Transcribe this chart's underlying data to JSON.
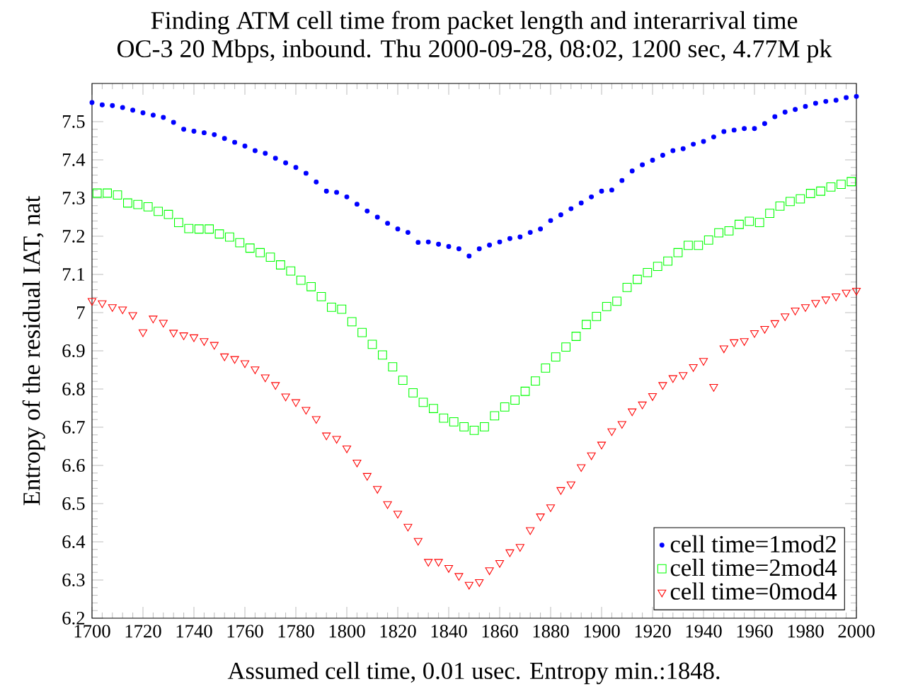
{
  "chart_data": {
    "type": "scatter",
    "title": "Finding ATM cell time from packet length and interarrival time",
    "subtitle": "OC-3 20 Mbps, inbound. Thu 2000-09-28, 08:02, 1200 sec, 4.77M pk",
    "xlabel": "Assumed cell time, 0.01 usec. Entropy min.:1848.",
    "ylabel": "Entropy of the residual IAT, nat",
    "xlim": [
      1700,
      2000
    ],
    "xticks": [
      1700,
      1720,
      1740,
      1760,
      1780,
      1800,
      1820,
      1840,
      1860,
      1880,
      1900,
      1920,
      1940,
      1960,
      1980,
      2000
    ],
    "ylim": [
      6.2,
      7.6
    ],
    "yticks": [
      6.2,
      6.3,
      6.4,
      6.5,
      6.6,
      6.7,
      6.8,
      6.9,
      {
        "value": 7.0,
        "label": "7"
      },
      7.1,
      7.2,
      7.3,
      7.4,
      7.5
    ],
    "legend": "bottom right",
    "series": [
      {
        "name": "cell time=1mod2",
        "color": "#0000ff",
        "marker": "circle",
        "x": [
          1700,
          1704,
          1708,
          1712,
          1716,
          1720,
          1724,
          1728,
          1732,
          1736,
          1740,
          1744,
          1748,
          1752,
          1756,
          1760,
          1764,
          1768,
          1772,
          1776,
          1780,
          1784,
          1788,
          1792,
          1796,
          1800,
          1804,
          1808,
          1812,
          1816,
          1820,
          1824,
          1828,
          1832,
          1836,
          1840,
          1844,
          1848,
          1852,
          1856,
          1860,
          1864,
          1868,
          1872,
          1876,
          1880,
          1884,
          1888,
          1892,
          1896,
          1900,
          1904,
          1908,
          1912,
          1916,
          1920,
          1924,
          1928,
          1932,
          1936,
          1940,
          1944,
          1948,
          1952,
          1956,
          1960,
          1964,
          1968,
          1972,
          1976,
          1980,
          1984,
          1988,
          1992,
          1996,
          2000
        ],
        "values": [
          7.55,
          7.544,
          7.542,
          7.537,
          7.53,
          7.523,
          7.517,
          7.511,
          7.498,
          7.48,
          7.475,
          7.471,
          7.466,
          7.456,
          7.446,
          7.436,
          7.424,
          7.417,
          7.404,
          7.392,
          7.38,
          7.365,
          7.342,
          7.318,
          7.315,
          7.303,
          7.284,
          7.266,
          7.25,
          7.234,
          7.219,
          7.21,
          7.184,
          7.185,
          7.179,
          7.173,
          7.167,
          7.148,
          7.167,
          7.177,
          7.185,
          7.194,
          7.198,
          7.21,
          7.219,
          7.241,
          7.256,
          7.272,
          7.287,
          7.303,
          7.318,
          7.321,
          7.346,
          7.371,
          7.387,
          7.399,
          7.412,
          7.424,
          7.429,
          7.441,
          7.448,
          7.46,
          7.474,
          7.478,
          7.482,
          7.482,
          7.495,
          7.513,
          7.525,
          7.532,
          7.54,
          7.548,
          7.553,
          7.556,
          7.563,
          7.566
        ]
      },
      {
        "name": "cell time=2mod4",
        "color": "#00ff00",
        "marker": "square",
        "x": [
          1702,
          1706,
          1710,
          1714,
          1718,
          1722,
          1726,
          1730,
          1734,
          1738,
          1742,
          1746,
          1750,
          1754,
          1758,
          1762,
          1766,
          1770,
          1774,
          1778,
          1782,
          1786,
          1790,
          1794,
          1798,
          1802,
          1806,
          1810,
          1814,
          1818,
          1822,
          1826,
          1830,
          1834,
          1838,
          1842,
          1846,
          1850,
          1854,
          1858,
          1862,
          1866,
          1870,
          1874,
          1878,
          1882,
          1886,
          1890,
          1894,
          1898,
          1902,
          1906,
          1910,
          1914,
          1918,
          1922,
          1926,
          1930,
          1934,
          1938,
          1942,
          1946,
          1950,
          1954,
          1958,
          1962,
          1966,
          1970,
          1974,
          1978,
          1982,
          1986,
          1990,
          1994,
          1998
        ],
        "values": [
          7.313,
          7.313,
          7.308,
          7.287,
          7.283,
          7.277,
          7.265,
          7.257,
          7.236,
          7.22,
          7.219,
          7.219,
          7.206,
          7.198,
          7.183,
          7.169,
          7.157,
          7.145,
          7.125,
          7.109,
          7.085,
          7.068,
          7.042,
          7.014,
          7.009,
          6.976,
          6.948,
          6.917,
          6.889,
          6.858,
          6.823,
          6.79,
          6.765,
          6.749,
          6.724,
          6.714,
          6.701,
          6.692,
          6.701,
          6.73,
          6.753,
          6.771,
          6.794,
          6.821,
          6.855,
          6.884,
          6.91,
          6.938,
          6.969,
          6.99,
          7.016,
          7.03,
          7.066,
          7.087,
          7.105,
          7.121,
          7.135,
          7.157,
          7.176,
          7.176,
          7.19,
          7.209,
          7.214,
          7.231,
          7.239,
          7.236,
          7.26,
          7.279,
          7.291,
          7.298,
          7.312,
          7.318,
          7.329,
          7.336,
          7.343
        ]
      },
      {
        "name": "cell time=0mod4",
        "color": "#ff0000",
        "marker": "triangle",
        "x": [
          1700,
          1704,
          1708,
          1712,
          1716,
          1720,
          1724,
          1728,
          1732,
          1736,
          1740,
          1744,
          1748,
          1752,
          1756,
          1760,
          1764,
          1768,
          1772,
          1776,
          1780,
          1784,
          1788,
          1792,
          1796,
          1800,
          1804,
          1808,
          1812,
          1816,
          1820,
          1824,
          1828,
          1832,
          1836,
          1840,
          1844,
          1848,
          1852,
          1856,
          1860,
          1864,
          1868,
          1872,
          1876,
          1880,
          1884,
          1888,
          1892,
          1896,
          1900,
          1904,
          1908,
          1912,
          1916,
          1920,
          1924,
          1928,
          1932,
          1936,
          1940,
          1944,
          1948,
          1952,
          1956,
          1960,
          1964,
          1968,
          1972,
          1976,
          1980,
          1984,
          1988,
          1992,
          1996,
          2000
        ],
        "values": [
          7.031,
          7.025,
          7.015,
          7.009,
          6.994,
          6.949,
          6.985,
          6.974,
          6.948,
          6.941,
          6.936,
          6.926,
          6.916,
          6.886,
          6.879,
          6.868,
          6.852,
          6.831,
          6.811,
          6.781,
          6.766,
          6.746,
          6.722,
          6.679,
          6.67,
          6.645,
          6.608,
          6.573,
          6.539,
          6.499,
          6.474,
          6.44,
          6.403,
          6.348,
          6.348,
          6.332,
          6.311,
          6.288,
          6.295,
          6.326,
          6.345,
          6.373,
          6.387,
          6.431,
          6.467,
          6.491,
          6.536,
          6.551,
          6.596,
          6.627,
          6.655,
          6.69,
          6.709,
          6.742,
          6.76,
          6.782,
          6.811,
          6.829,
          6.837,
          6.858,
          6.874,
          6.806,
          6.907,
          6.923,
          6.926,
          6.947,
          6.958,
          6.973,
          6.991,
          7.006,
          7.015,
          7.026,
          7.035,
          7.043,
          7.053,
          7.058
        ]
      }
    ]
  }
}
